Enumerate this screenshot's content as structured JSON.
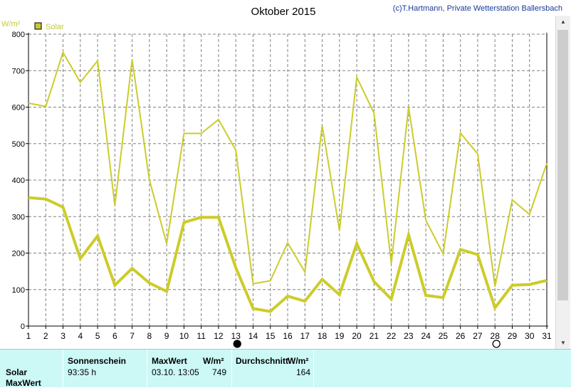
{
  "title": "Oktober 2015",
  "copyright": "(c)T.Hartmann, Private Wetterstation Ballersbach",
  "unit_label": "W/m²",
  "legend": {
    "label": "Solar",
    "color": "#c8c832"
  },
  "colors": {
    "series": "#cccc2a",
    "axis": "#000000",
    "grid": "#808080",
    "panel": "#ccf8f6"
  },
  "chart_data": {
    "type": "line",
    "title": "Oktober 2015",
    "ylabel": "W/m²",
    "xlabel": "",
    "ylim": [
      0,
      800
    ],
    "y_ticks": [
      0,
      100,
      200,
      300,
      400,
      500,
      600,
      700,
      800
    ],
    "categories": [
      "1",
      "2",
      "3",
      "4",
      "5",
      "6",
      "7",
      "8",
      "9",
      "10",
      "11",
      "12",
      "13",
      "14",
      "15",
      "16",
      "17",
      "18",
      "19",
      "20",
      "21",
      "22",
      "23",
      "24",
      "25",
      "26",
      "27",
      "28",
      "29",
      "30",
      "31"
    ],
    "grid": true,
    "legend_position": "top-left",
    "series": [
      {
        "name": "Solar",
        "style": "thin",
        "values": [
          611,
          602,
          750,
          668,
          727,
          330,
          730,
          400,
          226,
          528,
          528,
          566,
          482,
          116,
          124,
          228,
          148,
          550,
          262,
          682,
          584,
          172,
          600,
          290,
          198,
          529,
          472,
          108,
          346,
          306,
          446
        ]
      },
      {
        "name": "",
        "style": "thick",
        "values": [
          352,
          348,
          326,
          185,
          247,
          112,
          158,
          118,
          95,
          284,
          298,
          298,
          160,
          48,
          40,
          82,
          68,
          128,
          86,
          226,
          122,
          74,
          250,
          84,
          78,
          210,
          196,
          50,
          112,
          114,
          125
        ]
      }
    ],
    "moon_markers": [
      {
        "day": "13",
        "phase": "full"
      },
      {
        "day": "28",
        "phase": "new"
      }
    ]
  },
  "panel": {
    "row_labels": [
      "Solar",
      "MaxWert"
    ],
    "sonnenschein_header": "Sonnenschein",
    "sonnenschein_value": "93:35 h",
    "maxwert_header": "MaxWert",
    "maxwert_unit": "W/m²",
    "maxwert_datetime": "03.10.  13:05",
    "maxwert_value": "749",
    "durchschnitt_header": "Durchschnitt",
    "durchschnitt_unit": "W/m²",
    "durchschnitt_value": "164"
  }
}
